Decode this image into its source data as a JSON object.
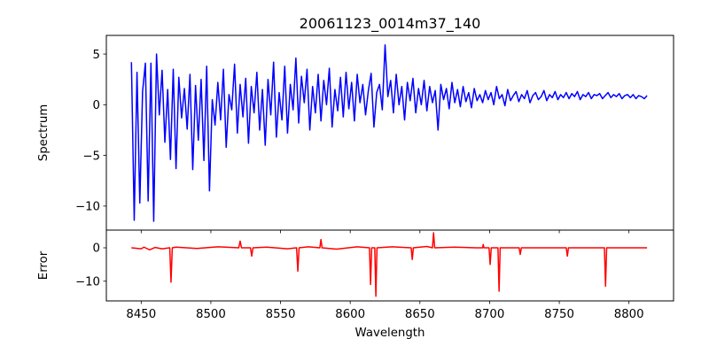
{
  "chart_data": [
    {
      "type": "line",
      "panel": "spectrum",
      "title": "20061123_0014m37_140",
      "xlabel": "",
      "ylabel": "Spectrum",
      "xlim": [
        8425,
        8832
      ],
      "ylim": [
        -12.37,
        6.84
      ],
      "grid": false,
      "color": "#0000ff",
      "yticks": [
        5,
        0,
        -5,
        -10
      ],
      "ytick_labels": [
        "5",
        "0",
        "−5",
        "−10"
      ],
      "series": [
        {
          "name": "Spectrum",
          "x_start": 8443,
          "x_step": 2,
          "values": [
            4.2,
            -11.4,
            3.2,
            -9.7,
            1.3,
            4.1,
            -9.5,
            4.1,
            -11.5,
            5.0,
            -1.0,
            3.4,
            -3.7,
            1.5,
            -5.4,
            3.5,
            -6.3,
            2.7,
            -1.3,
            1.6,
            -2.4,
            3.0,
            -6.4,
            1.9,
            -3.5,
            2.5,
            -5.5,
            3.8,
            -8.5,
            0.5,
            -2.0,
            2.2,
            -1.5,
            3.5,
            -4.2,
            1.0,
            -0.5,
            4.0,
            -2.8,
            2.0,
            -1.2,
            2.6,
            -3.8,
            1.8,
            -0.8,
            3.2,
            -2.5,
            1.5,
            -4.0,
            2.5,
            -1.0,
            4.2,
            -3.2,
            1.2,
            -1.5,
            3.8,
            -2.8,
            2.0,
            -0.5,
            4.6,
            -1.8,
            2.8,
            0.2,
            3.5,
            -2.5,
            1.8,
            -0.8,
            3.0,
            -1.6,
            2.4,
            0.0,
            3.6,
            -2.2,
            1.5,
            -0.6,
            2.7,
            -1.2,
            3.2,
            -0.4,
            2.2,
            -1.6,
            3.0,
            0.2,
            2.0,
            -1.0,
            1.4,
            3.1,
            -2.2,
            1.2,
            2.0,
            -0.5,
            5.9,
            0.8,
            2.4,
            -0.8,
            3.0,
            0.0,
            1.8,
            -1.5,
            2.2,
            0.4,
            2.6,
            -0.8,
            1.6,
            0.0,
            2.4,
            -0.6,
            1.8,
            0.2,
            1.4,
            -2.5,
            2.0,
            0.5,
            1.6,
            -0.4,
            2.2,
            0.2,
            1.5,
            -0.2,
            1.8,
            0.3,
            1.2,
            -0.3,
            1.6,
            0.4,
            1.0,
            0.2,
            1.4,
            0.5,
            1.2,
            0.0,
            1.8,
            0.6,
            1.0,
            -0.1,
            1.5,
            0.4,
            0.9,
            1.3,
            0.3,
            1.0,
            0.6,
            1.4,
            0.2,
            0.9,
            1.2,
            0.5,
            0.8,
            1.4,
            0.4,
            1.0,
            0.7,
            1.3,
            0.5,
            1.0,
            0.7,
            1.2,
            0.6,
            1.1,
            0.8,
            1.3,
            0.5,
            1.0,
            0.8,
            1.2,
            0.6,
            1.0,
            0.9,
            1.1,
            0.6,
            0.9,
            1.2,
            0.7,
            1.0,
            0.8,
            1.1,
            0.6,
            0.9,
            1.0,
            0.7,
            1.0,
            0.6,
            0.9,
            0.8,
            0.6,
            0.9
          ]
        }
      ]
    },
    {
      "type": "line",
      "panel": "error",
      "xlabel": "Wavelength",
      "ylabel": "Error",
      "xlim": [
        8425,
        8832
      ],
      "ylim": [
        -15.9,
        5.3
      ],
      "grid": false,
      "color": "#ff0000",
      "xticks": [
        8450,
        8500,
        8550,
        8600,
        8650,
        8700,
        8750,
        8800
      ],
      "xtick_labels": [
        "8450",
        "8500",
        "8550",
        "8600",
        "8650",
        "8700",
        "8750",
        "8800"
      ],
      "yticks": [
        0,
        -10
      ],
      "ytick_labels": [
        "0",
        "−10"
      ],
      "series": [
        {
          "name": "Error",
          "x": [
            8443,
            8450,
            8452,
            8456,
            8460,
            8465,
            8470.5,
            8471.4,
            8472.3,
            8475,
            8490,
            8505,
            8520,
            8521,
            8522,
            8528.4,
            8529.3,
            8530.2,
            8540,
            8555,
            8561.5,
            8562.4,
            8563.3,
            8570,
            8578.2,
            8579,
            8579.8,
            8590,
            8605,
            8613.8,
            8614.6,
            8615.4,
            8617.6,
            8618.4,
            8619.2,
            8630,
            8643.7,
            8644.5,
            8645.3,
            8655,
            8659,
            8659.8,
            8660.6,
            8675,
            8690,
            8695,
            8695.4,
            8696,
            8699.6,
            8700.4,
            8701.2,
            8706,
            8706.8,
            8707.6,
            8721.2,
            8722,
            8722.8,
            8740,
            8755,
            8755.8,
            8756.6,
            8770,
            8782.4,
            8783.2,
            8784,
            8800,
            8813
          ],
          "y": [
            0,
            -0.3,
            0.2,
            -0.6,
            0.1,
            -0.3,
            0,
            -10.3,
            0,
            0.2,
            -0.2,
            0.3,
            0,
            2.0,
            0,
            0,
            -2.5,
            0,
            0.2,
            -0.3,
            0,
            -7.0,
            0,
            0.3,
            0,
            2.5,
            0,
            -0.4,
            0.3,
            0,
            -11.0,
            0,
            0,
            -14.5,
            0,
            0.3,
            0,
            -3.5,
            0,
            0.4,
            0,
            4.5,
            0,
            0.2,
            0,
            0,
            1.0,
            0,
            0,
            -5.0,
            0,
            0,
            -13.0,
            0,
            0,
            -2.0,
            0,
            0,
            0,
            -2.5,
            0,
            0,
            0,
            -11.5,
            0,
            0,
            0
          ]
        }
      ]
    }
  ]
}
